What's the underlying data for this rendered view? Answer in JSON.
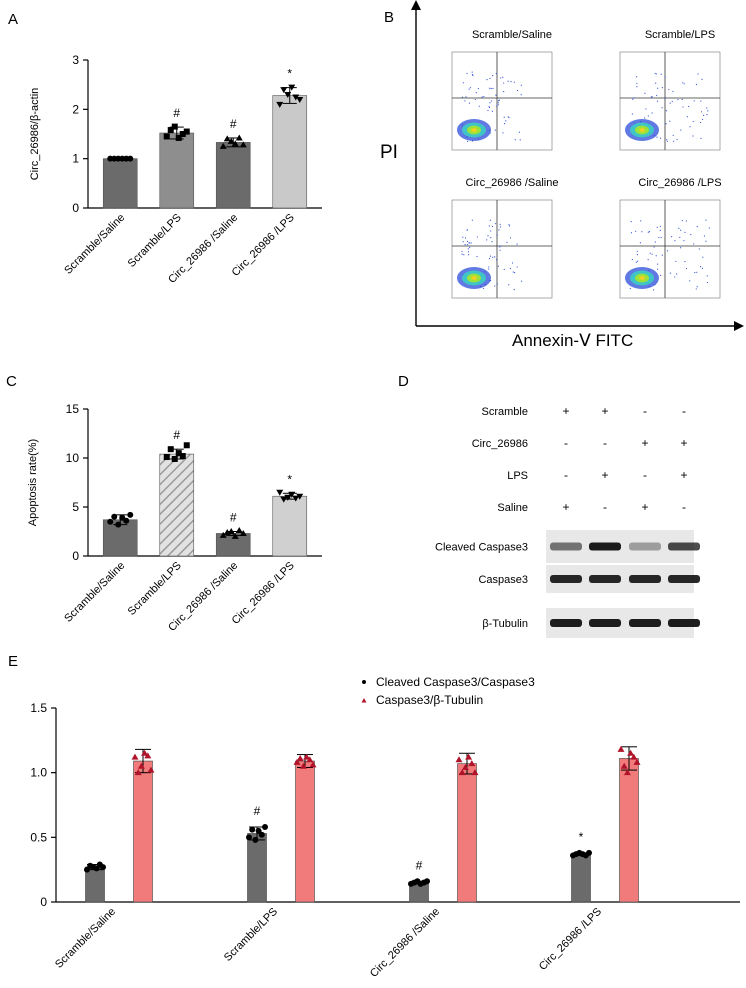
{
  "panels": {
    "A": "A",
    "B": "B",
    "C": "C",
    "D": "D",
    "E": "E"
  },
  "colors": {
    "dark": "#6b6b6b",
    "mid": "#8e8e8e",
    "light": "#c9c9c9",
    "red": "#f17b7b",
    "marker_dark": "#000000",
    "marker_red": "#b0132a"
  },
  "flow": {
    "titles": [
      "Scramble/Saline",
      "Scramble/LPS",
      "Circ_26986 /Saline",
      "Circ_26986 /LPS"
    ],
    "ylabel": "PI",
    "xlabel": "Annexin-Ⅴ FITC"
  },
  "western": {
    "rows": [
      {
        "label": "Scramble",
        "marks": [
          "+",
          "+",
          "-",
          "-"
        ]
      },
      {
        "label": "Circ_26986",
        "marks": [
          "-",
          "-",
          "+",
          "+"
        ]
      },
      {
        "label": "LPS",
        "marks": [
          "-",
          "+",
          "-",
          "+"
        ]
      },
      {
        "label": "Saline",
        "marks": [
          "+",
          "-",
          "+",
          "-"
        ]
      }
    ],
    "blots": [
      "Cleaved Caspase3",
      "Caspase3",
      "β-Tubulin"
    ],
    "band_intensity": [
      [
        0.55,
        0.95,
        0.35,
        0.75
      ],
      [
        0.9,
        0.9,
        0.9,
        0.9
      ],
      [
        0.95,
        0.95,
        0.95,
        0.95
      ]
    ]
  },
  "chart_data": [
    {
      "type": "bar",
      "panel": "A",
      "categories": [
        "Scramble/Saline",
        "Scramble/LPS",
        "Circ_26986 /Saline",
        "Circ_26986 /LPS"
      ],
      "values": [
        1.0,
        1.52,
        1.33,
        2.28
      ],
      "errors": [
        0.01,
        0.12,
        0.09,
        0.16
      ],
      "points": [
        [
          1,
          1,
          1,
          1,
          1,
          1
        ],
        [
          1.45,
          1.58,
          1.65,
          1.42,
          1.5,
          1.55
        ],
        [
          1.25,
          1.4,
          1.35,
          1.3,
          1.42,
          1.28
        ],
        [
          2.1,
          2.4,
          2.3,
          2.45,
          2.25,
          2.2
        ]
      ],
      "bar_colors": [
        "#6b6b6b",
        "#8e8e8e",
        "#6b6b6b",
        "#c9c9c9"
      ],
      "markers": [
        "circle",
        "square",
        "triangle",
        "triangle-down"
      ],
      "annotations": [
        "",
        "#",
        "#",
        "*"
      ],
      "ylabel": "Circ_26986/β-actin",
      "ylim": [
        0,
        3
      ],
      "yticks": [
        "0",
        "1",
        "2",
        "3"
      ]
    },
    {
      "type": "bar",
      "panel": "C",
      "categories": [
        "Scramble/Saline",
        "Scramble/LPS",
        "Circ_26986 /Saline",
        "Circ_26986 /LPS"
      ],
      "values": [
        3.7,
        10.4,
        2.3,
        6.1
      ],
      "errors": [
        0.5,
        0.5,
        0.2,
        0.3
      ],
      "points": [
        [
          3.5,
          4.0,
          3.2,
          3.9,
          3.6,
          4.2
        ],
        [
          10.1,
          10.9,
          9.9,
          10.5,
          10.2,
          11.3
        ],
        [
          2.1,
          2.4,
          2.5,
          2.0,
          2.6,
          2.3
        ],
        [
          6.5,
          5.8,
          6.0,
          6.3,
          5.9,
          6.1
        ]
      ],
      "bar_colors": [
        "#6b6b6b",
        "hatch",
        "#6b6b6b",
        "#d0d0d0"
      ],
      "markers": [
        "circle",
        "square",
        "triangle",
        "triangle-down"
      ],
      "annotations": [
        "",
        "#",
        "#",
        "*"
      ],
      "ylabel": "Apoptosis rate(%)",
      "ylim": [
        0,
        15
      ],
      "yticks": [
        "0",
        "5",
        "10",
        "15"
      ]
    },
    {
      "type": "bar",
      "panel": "E",
      "categories": [
        "Scramble/Saline",
        "Scramble/LPS",
        "Circ_26986 /Saline",
        "Circ_26986 /LPS"
      ],
      "series": [
        {
          "name": "Cleaved Caspase3/Caspase3",
          "values": [
            0.27,
            0.53,
            0.15,
            0.37
          ],
          "errors": [
            0.02,
            0.05,
            0.01,
            0.01
          ],
          "points": [
            [
              0.25,
              0.28,
              0.27,
              0.26,
              0.29,
              0.27
            ],
            [
              0.5,
              0.56,
              0.48,
              0.55,
              0.52,
              0.58
            ],
            [
              0.14,
              0.15,
              0.16,
              0.14,
              0.15,
              0.16
            ],
            [
              0.36,
              0.37,
              0.38,
              0.37,
              0.36,
              0.38
            ]
          ],
          "color": "#6b6b6b",
          "marker": "circle"
        },
        {
          "name": "Caspase3/β-Tubulin",
          "values": [
            1.09,
            1.09,
            1.07,
            1.11
          ],
          "errors": [
            0.09,
            0.05,
            0.08,
            0.09
          ],
          "points": [
            [
              1.12,
              1.0,
              1.05,
              1.15,
              1.13,
              1.02
            ],
            [
              1.08,
              1.11,
              1.05,
              1.12,
              1.1,
              1.06
            ],
            [
              1.1,
              1.0,
              1.04,
              1.12,
              1.07,
              1.0
            ],
            [
              1.18,
              1.05,
              1.0,
              1.15,
              1.12,
              1.08
            ]
          ],
          "color": "#f17b7b",
          "marker": "triangle"
        }
      ],
      "annotations": [
        "",
        "#",
        "#",
        "*"
      ],
      "ylim": [
        0,
        1.5
      ],
      "yticks": [
        "0",
        "0.5",
        "1.0",
        "1.5"
      ]
    }
  ]
}
